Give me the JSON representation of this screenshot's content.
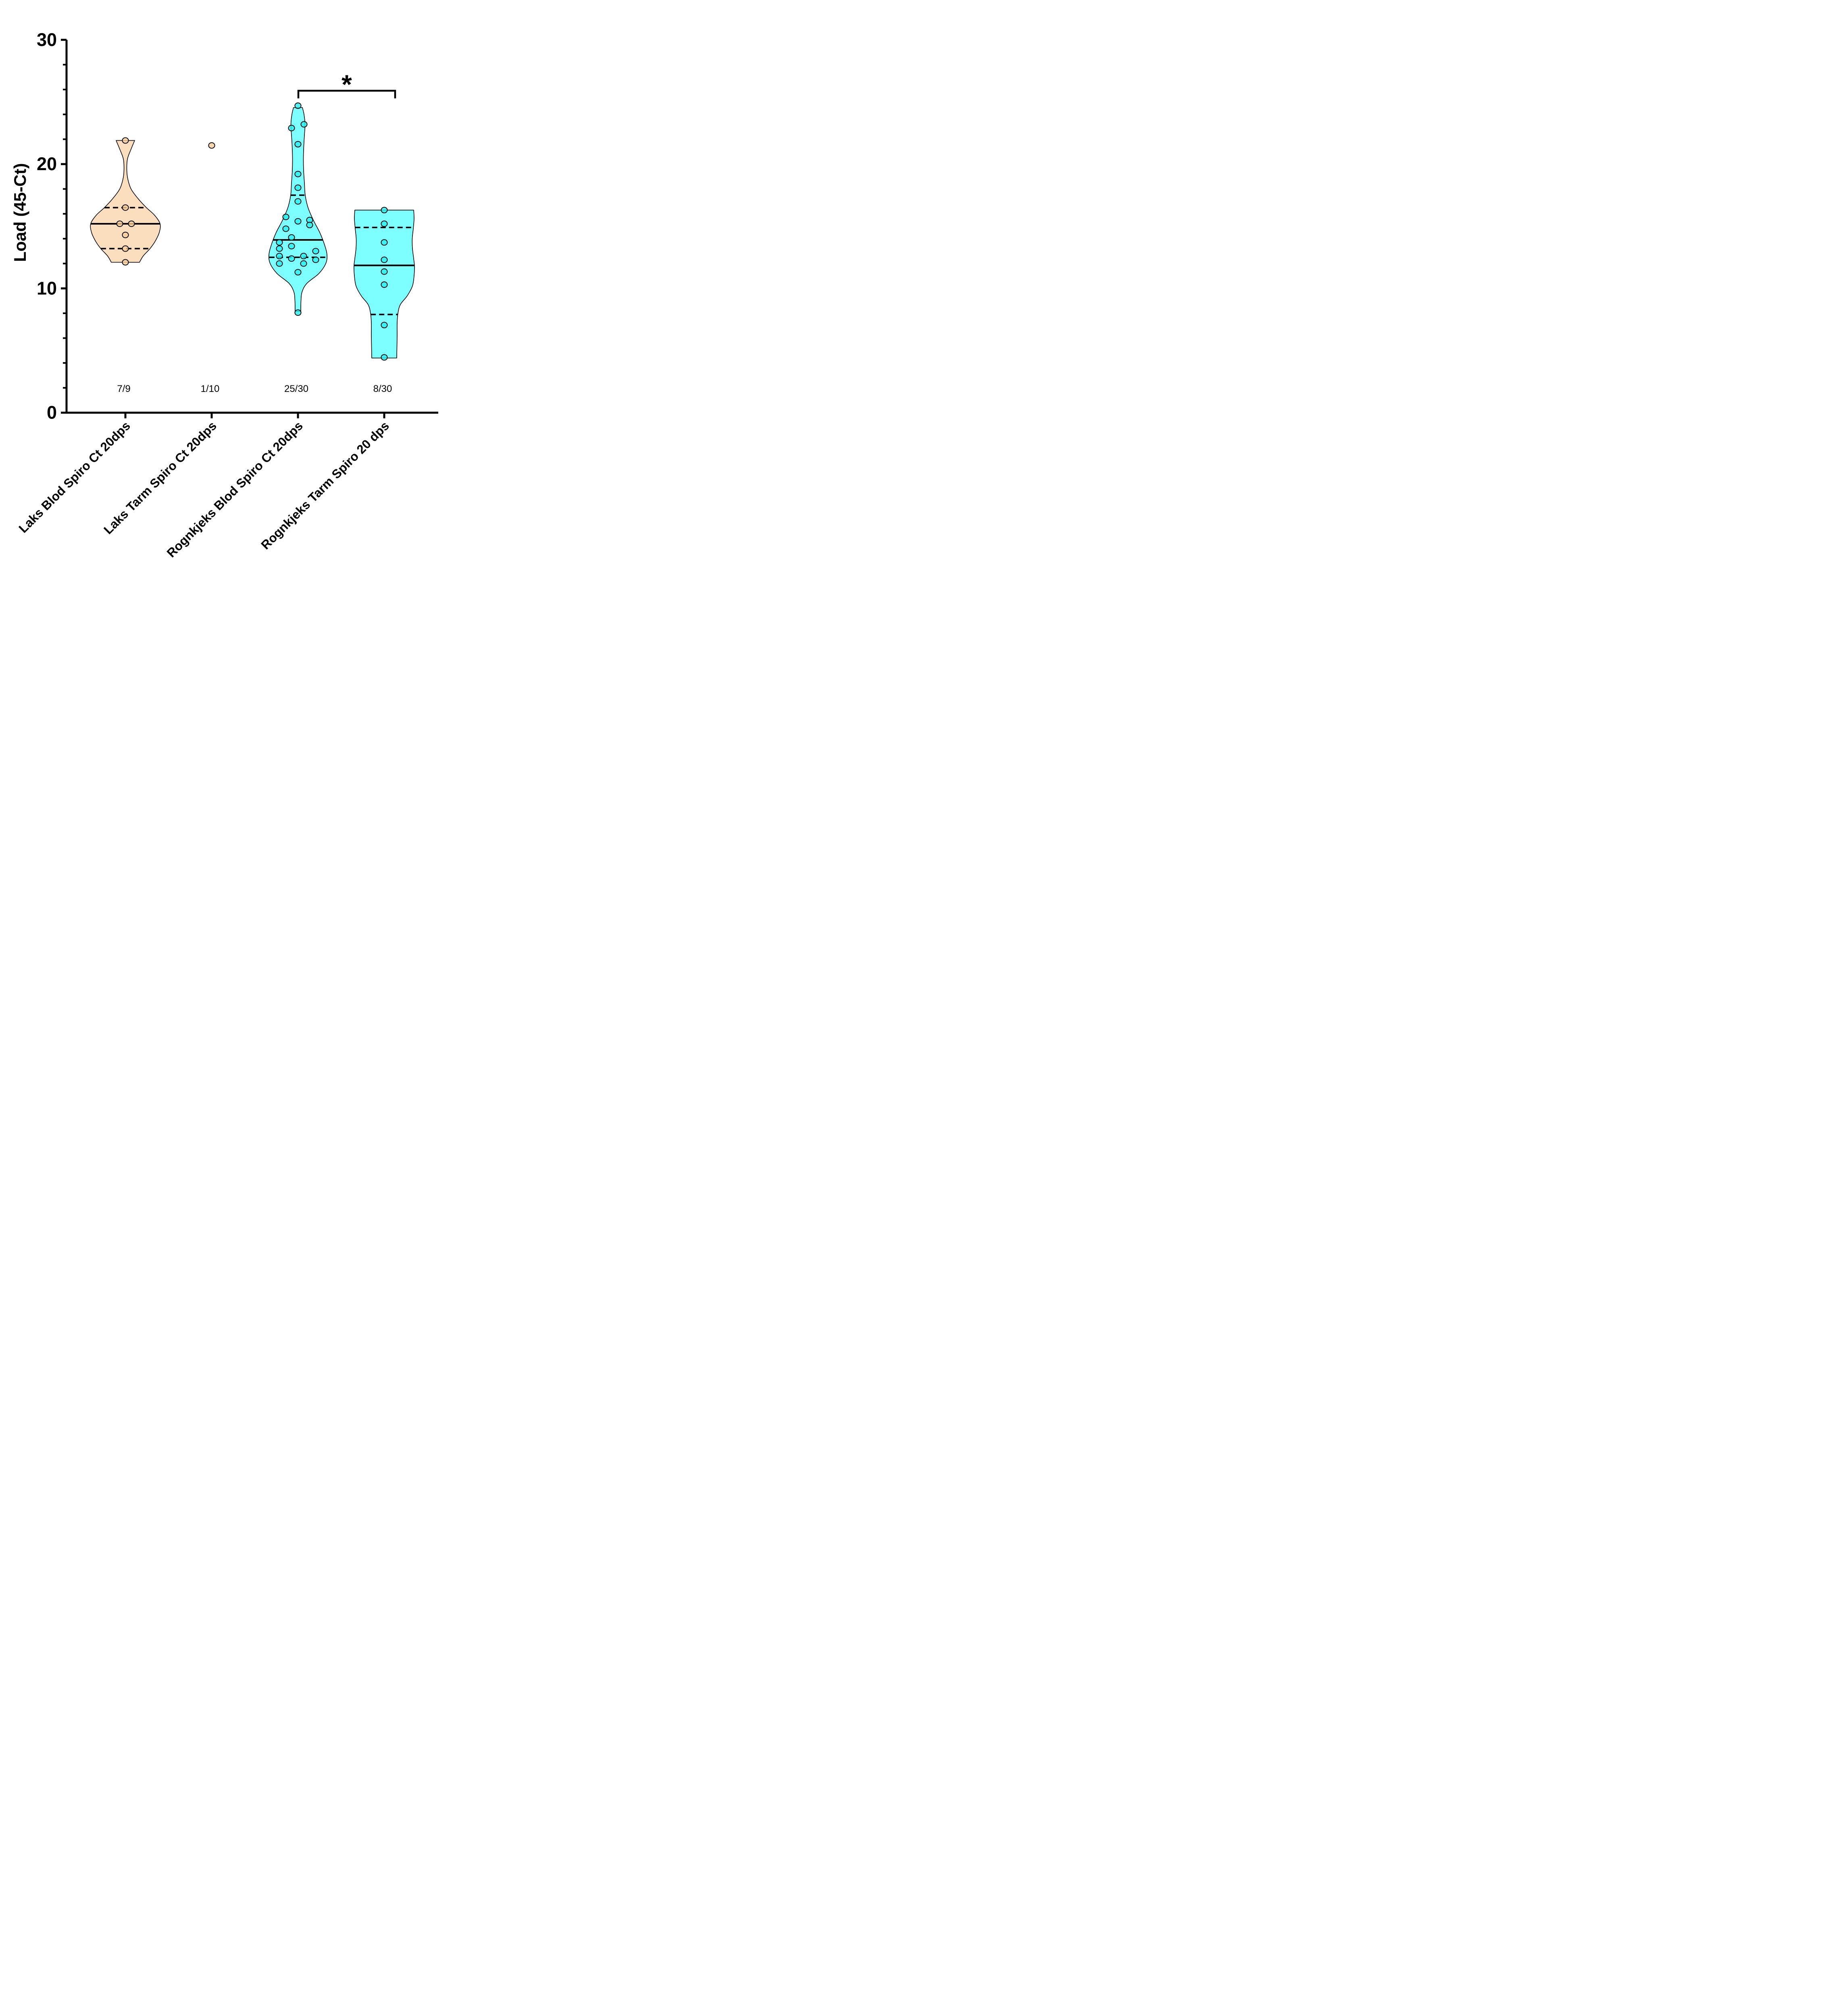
{
  "chart_data": {
    "type": "violin",
    "title": "",
    "ylabel": "Load (45-Ct)",
    "xlabel": "",
    "ylim": [
      0,
      30
    ],
    "yticks_major": [
      0,
      10,
      20,
      30
    ],
    "ytick_minor_step": 2,
    "grid": false,
    "background_color": "#FFFFFF",
    "axis_color": "#000000",
    "significance": {
      "label": "*",
      "from_category_index": 2,
      "to_category_index": 3
    },
    "categories": [
      {
        "label": "Laks Blod Spiro Ct 20dps",
        "count_label": "7/9",
        "violin_fill": "#FBDEBD",
        "point_fill": "#F9CD98",
        "median": 15.2,
        "quartile_low": 13.2,
        "quartile_high": 16.5,
        "points": [
          {
            "v": 21.9,
            "dx": 0
          },
          {
            "v": 16.5,
            "dx": 0
          },
          {
            "v": 15.2,
            "dx": -14
          },
          {
            "v": 15.2,
            "dx": 15
          },
          {
            "v": 14.3,
            "dx": 0
          },
          {
            "v": 13.2,
            "dx": 0
          },
          {
            "v": 12.1,
            "dx": 0
          }
        ],
        "outline": [
          {
            "v": 21.9,
            "hw": 23
          },
          {
            "v": 21.2,
            "hw": 14
          },
          {
            "v": 20.4,
            "hw": 5
          },
          {
            "v": 19.5,
            "hw": 3.5
          },
          {
            "v": 18.8,
            "hw": 6
          },
          {
            "v": 18.0,
            "hw": 14
          },
          {
            "v": 17.2,
            "hw": 32
          },
          {
            "v": 16.5,
            "hw": 52
          },
          {
            "v": 15.9,
            "hw": 72
          },
          {
            "v": 15.2,
            "hw": 86
          },
          {
            "v": 14.5,
            "hw": 84
          },
          {
            "v": 13.8,
            "hw": 74
          },
          {
            "v": 13.2,
            "hw": 61
          },
          {
            "v": 12.6,
            "hw": 44
          },
          {
            "v": 12.1,
            "hw": 35
          }
        ]
      },
      {
        "label": "Laks Tarm Spiro Ct 20dps",
        "count_label": "1/10",
        "violin_fill": null,
        "point_fill": "#F9CD98",
        "median": null,
        "quartile_low": null,
        "quartile_high": null,
        "points": [
          {
            "v": 21.5,
            "dx": 0
          }
        ],
        "outline": []
      },
      {
        "label": "Rognkjeks Blod Spiro Ct 20dps",
        "count_label": "25/30",
        "violin_fill": "#7DFFFF",
        "point_fill": "#25F0F0",
        "median": 13.9,
        "quartile_low": 12.5,
        "quartile_high": 17.5,
        "points": [
          {
            "v": 24.7,
            "dx": 0
          },
          {
            "v": 23.2,
            "dx": 15
          },
          {
            "v": 22.9,
            "dx": -16
          },
          {
            "v": 21.6,
            "dx": 0
          },
          {
            "v": 19.2,
            "dx": 0
          },
          {
            "v": 18.1,
            "dx": 0
          },
          {
            "v": 17.0,
            "dx": 0
          },
          {
            "v": 15.75,
            "dx": -30
          },
          {
            "v": 15.5,
            "dx": 29
          },
          {
            "v": 15.4,
            "dx": 0
          },
          {
            "v": 15.1,
            "dx": 29
          },
          {
            "v": 14.8,
            "dx": -30
          },
          {
            "v": 14.1,
            "dx": -16
          },
          {
            "v": 13.7,
            "dx": -46
          },
          {
            "v": 13.4,
            "dx": -16
          },
          {
            "v": 13.2,
            "dx": -46
          },
          {
            "v": 13.0,
            "dx": 44
          },
          {
            "v": 12.6,
            "dx": -46
          },
          {
            "v": 12.6,
            "dx": 14
          },
          {
            "v": 12.4,
            "dx": -16
          },
          {
            "v": 12.3,
            "dx": 44
          },
          {
            "v": 12.0,
            "dx": -46
          },
          {
            "v": 12.0,
            "dx": 14
          },
          {
            "v": 11.3,
            "dx": 0
          },
          {
            "v": 8.05,
            "dx": 0
          }
        ],
        "outline": [
          {
            "v": 24.55,
            "hw": 11
          },
          {
            "v": 24.0,
            "hw": 15
          },
          {
            "v": 23.2,
            "hw": 17.5
          },
          {
            "v": 22.3,
            "hw": 16
          },
          {
            "v": 21.5,
            "hw": 14.5
          },
          {
            "v": 20.5,
            "hw": 13.5
          },
          {
            "v": 19.5,
            "hw": 14
          },
          {
            "v": 18.5,
            "hw": 16
          },
          {
            "v": 17.5,
            "hw": 18
          },
          {
            "v": 16.5,
            "hw": 25
          },
          {
            "v": 15.5,
            "hw": 38
          },
          {
            "v": 14.5,
            "hw": 54
          },
          {
            "v": 13.5,
            "hw": 66
          },
          {
            "v": 12.7,
            "hw": 72
          },
          {
            "v": 12.0,
            "hw": 69
          },
          {
            "v": 11.2,
            "hw": 52
          },
          {
            "v": 10.4,
            "hw": 22
          },
          {
            "v": 9.7,
            "hw": 10
          },
          {
            "v": 9.0,
            "hw": 7.5
          },
          {
            "v": 8.15,
            "hw": 7
          }
        ]
      },
      {
        "label": "Rognkjeks Tarm Spiro 20 dps",
        "count_label": "8/30",
        "violin_fill": "#7DFFFF",
        "point_fill": "#25F0F0",
        "median": 11.85,
        "quartile_low": 7.9,
        "quartile_high": 14.9,
        "points": [
          {
            "v": 16.3,
            "dx": 0
          },
          {
            "v": 15.2,
            "dx": 0
          },
          {
            "v": 13.7,
            "dx": 0
          },
          {
            "v": 12.3,
            "dx": 0
          },
          {
            "v": 11.35,
            "dx": 0
          },
          {
            "v": 10.3,
            "dx": 0
          },
          {
            "v": 7.05,
            "dx": 0
          },
          {
            "v": 4.45,
            "dx": 0
          }
        ],
        "outline": [
          {
            "v": 16.3,
            "hw": 73
          },
          {
            "v": 15.6,
            "hw": 74
          },
          {
            "v": 14.8,
            "hw": 72
          },
          {
            "v": 14.0,
            "hw": 69.5
          },
          {
            "v": 13.2,
            "hw": 70
          },
          {
            "v": 12.4,
            "hw": 73
          },
          {
            "v": 11.8,
            "hw": 75
          },
          {
            "v": 11.0,
            "hw": 74
          },
          {
            "v": 10.2,
            "hw": 70
          },
          {
            "v": 9.4,
            "hw": 57
          },
          {
            "v": 8.7,
            "hw": 40
          },
          {
            "v": 8.0,
            "hw": 34
          },
          {
            "v": 7.2,
            "hw": 32
          },
          {
            "v": 6.2,
            "hw": 32
          },
          {
            "v": 5.3,
            "hw": 31.5
          },
          {
            "v": 4.4,
            "hw": 31
          }
        ]
      }
    ]
  }
}
